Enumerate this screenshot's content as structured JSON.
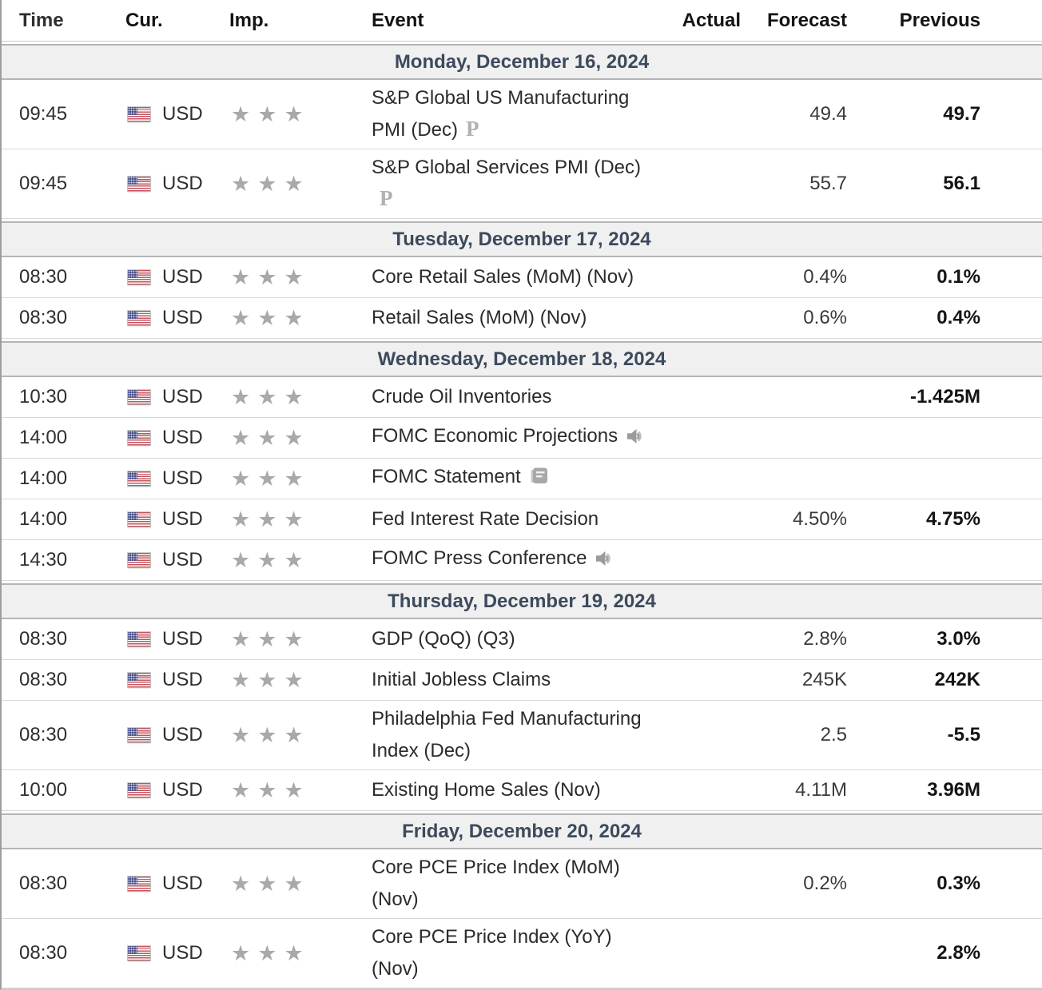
{
  "table": {
    "columns": [
      "Time",
      "Cur.",
      "Imp.",
      "Event",
      "Actual",
      "Forecast",
      "Previous"
    ],
    "markers": {
      "preliminary_label": "P"
    },
    "colors": {
      "day_text": "#3c4a5c",
      "day_band_bg": "#f0f0f0",
      "band_border": "#b5b5b5",
      "row_border": "#d9d9d9",
      "star": "#a9a9a9",
      "flag_red": "#c3545e",
      "flag_blue": "#4a4f88",
      "previous_bold": "#141414"
    },
    "sections": [
      {
        "day": "Monday, December 16, 2024",
        "rows": [
          {
            "time": "09:45",
            "currency": "USD",
            "stars": 3,
            "event": "S&P Global US Manufacturing PMI (Dec)",
            "marker": "preliminary",
            "actual": "",
            "forecast": "49.4",
            "previous": "49.7"
          },
          {
            "time": "09:45",
            "currency": "USD",
            "stars": 3,
            "event": "S&P Global Services PMI (Dec)",
            "marker": "preliminary",
            "actual": "",
            "forecast": "55.7",
            "previous": "56.1"
          }
        ]
      },
      {
        "day": "Tuesday, December 17, 2024",
        "rows": [
          {
            "time": "08:30",
            "currency": "USD",
            "stars": 3,
            "event": "Core Retail Sales (MoM) (Nov)",
            "marker": "",
            "actual": "",
            "forecast": "0.4%",
            "previous": "0.1%"
          },
          {
            "time": "08:30",
            "currency": "USD",
            "stars": 3,
            "event": "Retail Sales (MoM) (Nov)",
            "marker": "",
            "actual": "",
            "forecast": "0.6%",
            "previous": "0.4%"
          }
        ]
      },
      {
        "day": "Wednesday, December 18, 2024",
        "rows": [
          {
            "time": "10:30",
            "currency": "USD",
            "stars": 3,
            "event": "Crude Oil Inventories",
            "marker": "",
            "actual": "",
            "forecast": "",
            "previous": "-1.425M"
          },
          {
            "time": "14:00",
            "currency": "USD",
            "stars": 3,
            "event": "FOMC Economic Projections",
            "marker": "speech",
            "actual": "",
            "forecast": "",
            "previous": ""
          },
          {
            "time": "14:00",
            "currency": "USD",
            "stars": 3,
            "event": "FOMC Statement",
            "marker": "report",
            "actual": "",
            "forecast": "",
            "previous": ""
          },
          {
            "time": "14:00",
            "currency": "USD",
            "stars": 3,
            "event": "Fed Interest Rate Decision",
            "marker": "",
            "actual": "",
            "forecast": "4.50%",
            "previous": "4.75%"
          },
          {
            "time": "14:30",
            "currency": "USD",
            "stars": 3,
            "event": "FOMC Press Conference",
            "marker": "speech",
            "actual": "",
            "forecast": "",
            "previous": ""
          }
        ]
      },
      {
        "day": "Thursday, December 19, 2024",
        "rows": [
          {
            "time": "08:30",
            "currency": "USD",
            "stars": 3,
            "event": "GDP (QoQ) (Q3)",
            "marker": "",
            "actual": "",
            "forecast": "2.8%",
            "previous": "3.0%"
          },
          {
            "time": "08:30",
            "currency": "USD",
            "stars": 3,
            "event": "Initial Jobless Claims",
            "marker": "",
            "actual": "",
            "forecast": "245K",
            "previous": "242K"
          },
          {
            "time": "08:30",
            "currency": "USD",
            "stars": 3,
            "event": "Philadelphia Fed Manufacturing Index (Dec)",
            "marker": "",
            "actual": "",
            "forecast": "2.5",
            "previous": "-5.5"
          },
          {
            "time": "10:00",
            "currency": "USD",
            "stars": 3,
            "event": "Existing Home Sales (Nov)",
            "marker": "",
            "actual": "",
            "forecast": "4.11M",
            "previous": "3.96M"
          }
        ]
      },
      {
        "day": "Friday, December 20, 2024",
        "rows": [
          {
            "time": "08:30",
            "currency": "USD",
            "stars": 3,
            "event": "Core PCE Price Index (MoM) (Nov)",
            "marker": "",
            "actual": "",
            "forecast": "0.2%",
            "previous": "0.3%"
          },
          {
            "time": "08:30",
            "currency": "USD",
            "stars": 3,
            "event": "Core PCE Price Index (YoY) (Nov)",
            "marker": "",
            "actual": "",
            "forecast": "",
            "previous": "2.8%"
          }
        ]
      }
    ]
  }
}
